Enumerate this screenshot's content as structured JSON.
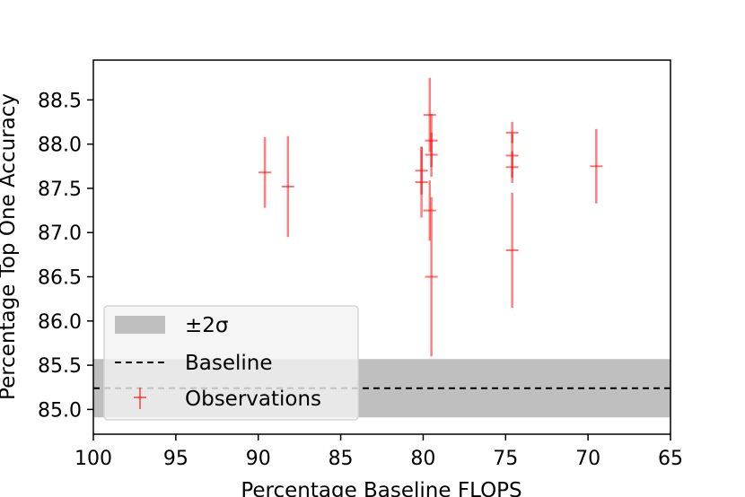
{
  "chart_data": {
    "type": "scatter",
    "title": "",
    "xlabel": "Percentage Baseline FLOPS",
    "ylabel": "Percentage Top One Accuracy",
    "xlim": [
      100,
      65
    ],
    "ylim": [
      84.72,
      88.95
    ],
    "x_inverted": true,
    "xticks": [
      100,
      95,
      90,
      85,
      80,
      75,
      70,
      65
    ],
    "yticks": [
      85.0,
      85.5,
      86.0,
      86.5,
      87.0,
      87.5,
      88.0,
      88.5
    ],
    "xtick_labels": [
      "100",
      "95",
      "90",
      "85",
      "80",
      "75",
      "70",
      "65"
    ],
    "ytick_labels": [
      "85.0",
      "85.5",
      "86.0",
      "86.5",
      "87.0",
      "87.5",
      "88.0",
      "88.5"
    ],
    "grid": false,
    "legend_position": "lower-left",
    "legend": {
      "band_label": "±2σ",
      "baseline_label": "Baseline",
      "observations_label": "Observations"
    },
    "baseline": {
      "y": 85.24,
      "color": "#000000",
      "style": "dashed"
    },
    "band": {
      "y_low": 84.91,
      "y_high": 85.57,
      "color": "#bfbfbf"
    },
    "observations": {
      "color": "#ff0000",
      "points": [
        {
          "x": 89.6,
          "y": 87.68,
          "err": 0.4
        },
        {
          "x": 88.2,
          "y": 87.52,
          "err": 0.57
        },
        {
          "x": 80.1,
          "y": 87.7,
          "err": 0.27
        },
        {
          "x": 80.1,
          "y": 87.57,
          "err": 0.4
        },
        {
          "x": 79.6,
          "y": 88.33,
          "err": 0.42
        },
        {
          "x": 79.5,
          "y": 88.04,
          "err": 0.3
        },
        {
          "x": 79.5,
          "y": 87.88,
          "err": 0.25
        },
        {
          "x": 79.6,
          "y": 87.25,
          "err": 0.34
        },
        {
          "x": 79.5,
          "y": 86.5,
          "err": 0.9
        },
        {
          "x": 74.6,
          "y": 88.13,
          "err": 0.12
        },
        {
          "x": 74.6,
          "y": 87.87,
          "err": 0.25
        },
        {
          "x": 74.6,
          "y": 87.74,
          "err": 0.18
        },
        {
          "x": 74.6,
          "y": 86.8,
          "err": 0.65
        },
        {
          "x": 69.5,
          "y": 87.75,
          "err": 0.42
        }
      ]
    }
  }
}
